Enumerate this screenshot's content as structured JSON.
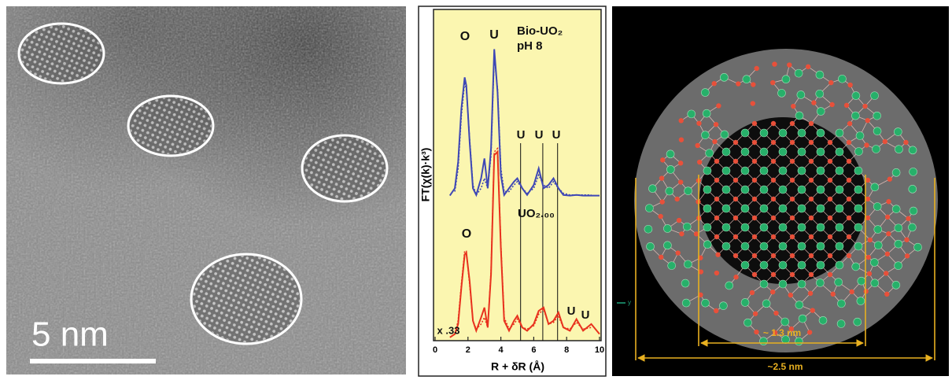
{
  "tem": {
    "scale_label": "5 nm"
  },
  "chart_data": {
    "type": "line",
    "x_label": "R + δR (Å)",
    "y_label": "FT(χ(k)·k³)",
    "xlim": [
      0,
      10
    ],
    "xticks": [
      0,
      2,
      4,
      6,
      8,
      10
    ],
    "ylim": [
      0,
      10
    ],
    "x": [
      0.9,
      1.2,
      1.4,
      1.6,
      1.8,
      1.9,
      2.1,
      2.3,
      2.5,
      2.8,
      3.0,
      3.2,
      3.4,
      3.6,
      3.8,
      4.0,
      4.2,
      4.5,
      4.8,
      5.0,
      5.3,
      5.6,
      6.0,
      6.3,
      6.6,
      6.9,
      7.2,
      7.5,
      7.8,
      8.2,
      8.6,
      9.0,
      9.5,
      10
    ],
    "series": [
      {
        "name": "Bio-UO₂ pH 8",
        "color": "#3f48b5",
        "style": "solid",
        "values": [
          4.38,
          4.6,
          5.4,
          7.0,
          7.95,
          7.7,
          6.0,
          4.6,
          4.4,
          4.9,
          5.5,
          4.6,
          5.8,
          8.8,
          7.5,
          5.0,
          4.4,
          4.6,
          4.8,
          4.9,
          4.6,
          4.4,
          4.7,
          5.2,
          4.6,
          4.7,
          4.9,
          4.6,
          4.4,
          4.38,
          4.4,
          4.38,
          4.38,
          4.38
        ]
      },
      {
        "color": "#3f48b5",
        "style": "dotted",
        "values": [
          null,
          4.5,
          5.2,
          6.8,
          7.8,
          7.6,
          6.1,
          4.7,
          4.4,
          4.6,
          4.9,
          4.6,
          5.6,
          8.6,
          7.6,
          5.2,
          4.5,
          4.5,
          4.7,
          4.8,
          4.6,
          4.45,
          4.6,
          5.0,
          4.7,
          4.6,
          4.8,
          4.6,
          4.45,
          4.4,
          4.4,
          4.4,
          4.4,
          null
        ]
      },
      {
        "name": "UO₂.₀₀",
        "color": "#e8321e",
        "style": "solid",
        "values": [
          0.1,
          0.2,
          0.5,
          1.6,
          2.6,
          2.65,
          1.8,
          0.6,
          0.3,
          0.7,
          1.0,
          0.4,
          2.0,
          5.6,
          5.7,
          2.8,
          0.6,
          0.3,
          0.6,
          0.75,
          0.4,
          0.3,
          0.5,
          0.9,
          1.0,
          0.5,
          0.6,
          0.85,
          0.4,
          0.3,
          0.65,
          0.3,
          0.5,
          0.2
        ]
      },
      {
        "color": "#e8321e",
        "style": "dotted",
        "values": [
          null,
          0.2,
          0.6,
          1.7,
          2.7,
          2.7,
          1.7,
          0.6,
          0.35,
          0.5,
          0.7,
          0.4,
          2.1,
          5.7,
          5.8,
          2.9,
          0.7,
          0.35,
          0.5,
          0.65,
          0.4,
          0.35,
          0.45,
          0.8,
          0.95,
          0.5,
          0.55,
          0.75,
          0.4,
          0.35,
          0.55,
          0.35,
          0.4,
          null
        ]
      }
    ],
    "markers": [
      5.2,
      6.55,
      7.45
    ],
    "annotations": [
      "O",
      "U",
      "U",
      "U",
      "U",
      "O",
      "U",
      "U",
      "x .33"
    ]
  },
  "model": {
    "inner_label": "~ 1.3 nm",
    "outer_label": "~2.5 nm",
    "axis_label": "y"
  }
}
